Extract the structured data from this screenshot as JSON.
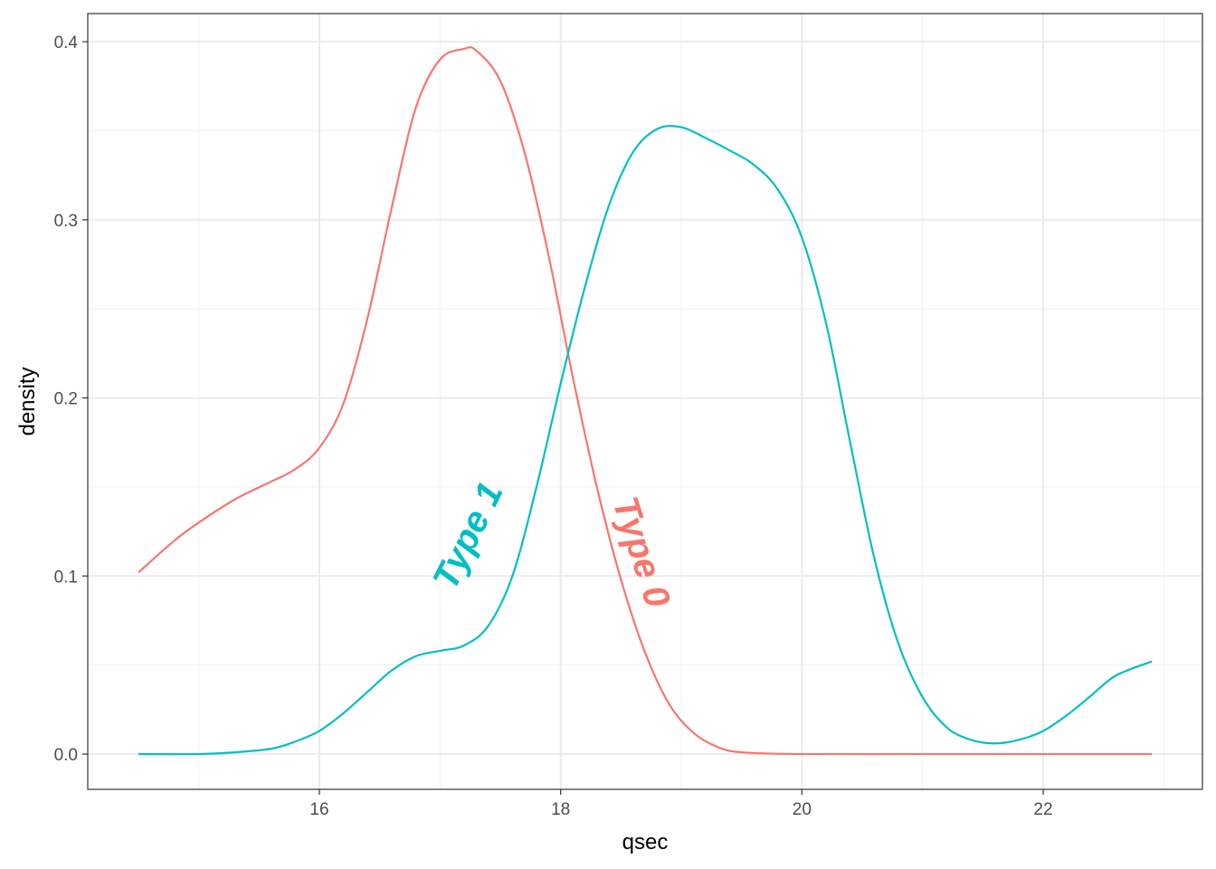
{
  "chart_data": {
    "type": "line",
    "title": "",
    "xlabel": "qsec",
    "ylabel": "density",
    "xlim": [
      14.08,
      23.32
    ],
    "ylim": [
      -0.0198,
      0.4158
    ],
    "x_ticks": [
      16,
      18,
      20,
      22
    ],
    "x_tick_labels": [
      "16",
      "18",
      "20",
      "22"
    ],
    "y_ticks": [
      0.0,
      0.1,
      0.2,
      0.3,
      0.4
    ],
    "y_tick_labels": [
      "0.0",
      "0.1",
      "0.2",
      "0.3",
      "0.4"
    ],
    "grid": true,
    "legend": "none",
    "series": [
      {
        "name": "Type 0",
        "color": "#F8766D",
        "x": [
          14.5,
          14.8,
          15.0,
          15.3,
          15.6,
          15.8,
          16.0,
          16.2,
          16.4,
          16.6,
          16.8,
          17.0,
          17.2,
          17.3,
          17.5,
          17.7,
          17.9,
          18.1,
          18.3,
          18.5,
          18.7,
          18.9,
          19.1,
          19.3,
          19.5,
          20.0,
          21.0,
          22.0,
          22.9
        ],
        "y": [
          0.102,
          0.12,
          0.13,
          0.143,
          0.153,
          0.16,
          0.172,
          0.197,
          0.245,
          0.307,
          0.363,
          0.39,
          0.396,
          0.395,
          0.378,
          0.338,
          0.28,
          0.212,
          0.15,
          0.098,
          0.057,
          0.028,
          0.012,
          0.004,
          0.001,
          0.0,
          0.0,
          0.0,
          0.0
        ]
      },
      {
        "name": "Type 1",
        "color": "#00BFC4",
        "x": [
          14.5,
          15.0,
          15.3,
          15.6,
          15.8,
          16.0,
          16.2,
          16.4,
          16.6,
          16.8,
          17.0,
          17.2,
          17.4,
          17.6,
          17.8,
          18.0,
          18.2,
          18.4,
          18.6,
          18.8,
          19.0,
          19.2,
          19.4,
          19.6,
          19.8,
          20.0,
          20.2,
          20.4,
          20.6,
          20.8,
          21.0,
          21.2,
          21.4,
          21.6,
          21.8,
          22.0,
          22.2,
          22.4,
          22.6,
          22.9
        ],
        "y": [
          0.0,
          0.0,
          0.001,
          0.003,
          0.007,
          0.013,
          0.023,
          0.035,
          0.047,
          0.055,
          0.058,
          0.061,
          0.072,
          0.1,
          0.15,
          0.208,
          0.262,
          0.308,
          0.338,
          0.351,
          0.352,
          0.346,
          0.339,
          0.331,
          0.317,
          0.29,
          0.242,
          0.175,
          0.11,
          0.062,
          0.032,
          0.015,
          0.008,
          0.006,
          0.008,
          0.013,
          0.022,
          0.033,
          0.044,
          0.052
        ]
      }
    ],
    "annotations": [
      {
        "text": "Type 1",
        "series": "Type 1",
        "x": 17.25,
        "y": 0.122,
        "angle": -64
      },
      {
        "text": "Type 0",
        "series": "Type 0",
        "x": 18.65,
        "y": 0.113,
        "angle": 72
      }
    ]
  }
}
